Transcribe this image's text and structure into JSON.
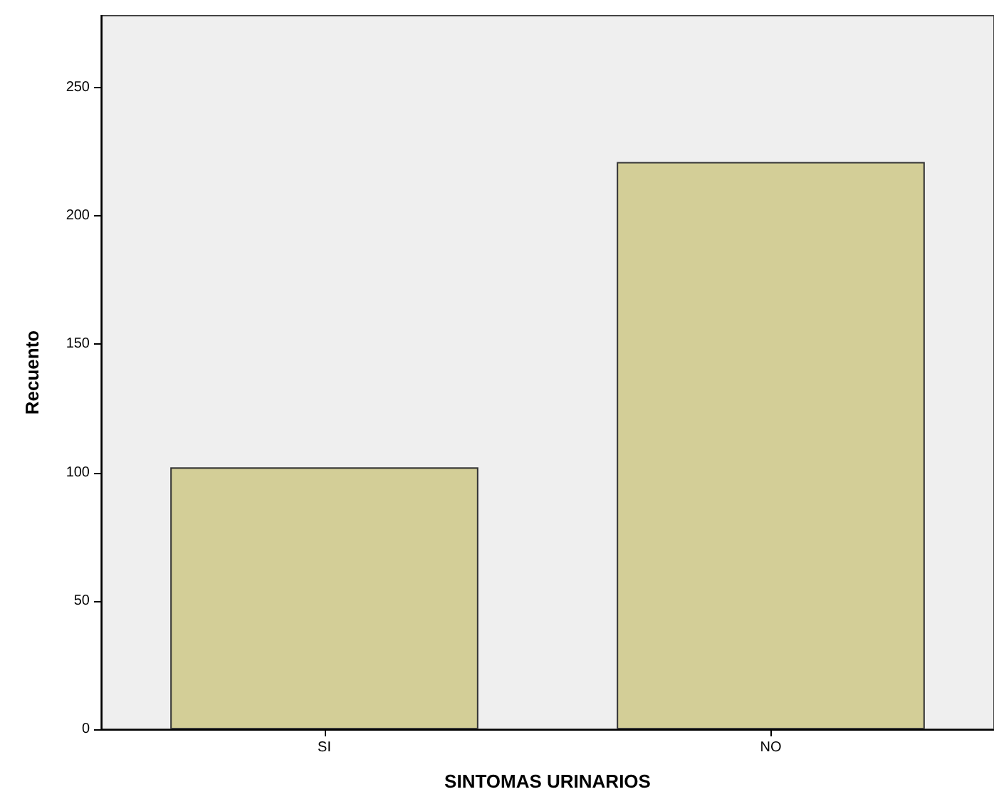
{
  "chart_data": {
    "type": "bar",
    "xlabel": "SINTOMAS URINARIOS",
    "ylabel": "Recuento",
    "categories": [
      "SI",
      "NO"
    ],
    "values": [
      102,
      221
    ],
    "color": "#d3ce97",
    "ylim": [
      0,
      278
    ],
    "yticks": [
      0,
      50,
      100,
      150,
      200,
      250
    ],
    "grid": false
  }
}
